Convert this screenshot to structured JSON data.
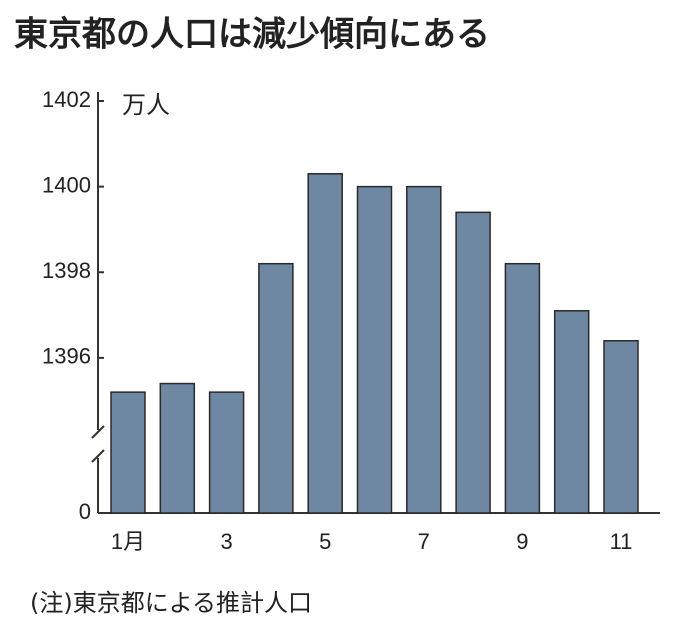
{
  "chart_data": {
    "type": "bar",
    "title": "東京都の人口は減少傾向にある",
    "y_unit": "万人",
    "note": "(注)東京都による推計人口",
    "categories": [
      "1月",
      null,
      "3",
      null,
      "5",
      null,
      "7",
      null,
      "9",
      null,
      "11"
    ],
    "values": [
      1395.2,
      1395.4,
      1395.2,
      1398.2,
      1400.3,
      1400.0,
      1400.0,
      1399.4,
      1398.2,
      1397.1,
      1396.4
    ],
    "color": "#6e87a2",
    "ylim": [
      0,
      1402
    ],
    "y_break": [
      0,
      1394
    ],
    "yticks": [
      0,
      1396,
      1398,
      1400,
      1402
    ]
  }
}
